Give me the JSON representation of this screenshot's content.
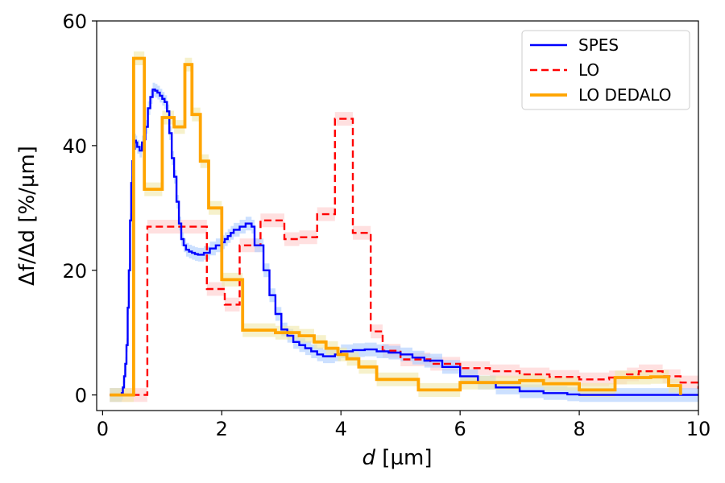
{
  "chart_data": {
    "type": "line",
    "step": true,
    "xlabel_var": "d",
    "xlabel_unit": " [µm]",
    "ylabel": "Δf/Δd [%/µm]",
    "xlim": [
      -0.1,
      10
    ],
    "ylim": [
      -2.5,
      60
    ],
    "xticks": [
      0,
      2,
      4,
      6,
      8,
      10
    ],
    "yticks": [
      0,
      20,
      40,
      60
    ],
    "grid": false,
    "legend_position": "top-right",
    "series": [
      {
        "name": "SPES",
        "color": "#0000ff",
        "dash": "solid",
        "band_color": "#aaccff",
        "x": [
          0.12,
          0.32,
          0.34,
          0.36,
          0.38,
          0.4,
          0.42,
          0.44,
          0.46,
          0.48,
          0.5,
          0.52,
          0.54,
          0.56,
          0.58,
          0.62,
          0.66,
          0.7,
          0.72,
          0.76,
          0.8,
          0.84,
          0.88,
          0.92,
          0.96,
          1.0,
          1.04,
          1.08,
          1.12,
          1.16,
          1.2,
          1.24,
          1.28,
          1.32,
          1.36,
          1.4,
          1.45,
          1.5,
          1.55,
          1.6,
          1.7,
          1.8,
          1.9,
          2.0,
          2.05,
          2.1,
          2.15,
          2.2,
          2.3,
          2.4,
          2.5,
          2.55,
          2.6,
          2.7,
          2.8,
          2.9,
          3.0,
          3.1,
          3.2,
          3.3,
          3.4,
          3.5,
          3.6,
          3.7,
          3.8,
          3.9,
          4.0,
          4.2,
          4.4,
          4.6,
          4.8,
          5.0,
          5.2,
          5.4,
          5.7,
          6.0,
          6.3,
          6.6,
          7.0,
          7.4,
          7.8,
          8.0,
          10.0
        ],
        "values": [
          0,
          0.3,
          1.2,
          3,
          5,
          8,
          14,
          20,
          28,
          34,
          37.5,
          39.5,
          40.8,
          40.5,
          39.8,
          39.2,
          40.5,
          41,
          43,
          46,
          47.8,
          49,
          48.8,
          48.5,
          48,
          47.5,
          47,
          45.5,
          42,
          38,
          35,
          31,
          27.5,
          25,
          24,
          23.3,
          23,
          22.8,
          22.6,
          22.5,
          22.8,
          23.5,
          24,
          24.5,
          25,
          25.5,
          26,
          26.5,
          27,
          27.5,
          27,
          24,
          24,
          20,
          16,
          13,
          10.5,
          9.5,
          8.5,
          8,
          7.5,
          7,
          6.5,
          6.2,
          6.2,
          6.5,
          7,
          7.2,
          7.3,
          7,
          6.8,
          6.5,
          6,
          5.5,
          4.5,
          3,
          2,
          1.2,
          0.6,
          0.3,
          0.1,
          0,
          0
        ]
      },
      {
        "name": "LO",
        "color": "#ff0000",
        "dash": "dashed",
        "band_color": "#ffcccc",
        "x": [
          0.12,
          0.75,
          1.45,
          1.75,
          2.05,
          2.3,
          2.65,
          3.05,
          3.3,
          3.6,
          3.9,
          4.2,
          4.5,
          4.7,
          5.0,
          5.5,
          6.0,
          6.5,
          7.0,
          7.5,
          8.0,
          8.5,
          8.8,
          9.0,
          9.4,
          9.7,
          10.0
        ],
        "values": [
          0,
          27,
          27,
          17,
          14.5,
          24,
          28,
          25,
          25.3,
          29,
          44.3,
          26,
          10.2,
          7.1,
          5.7,
          5,
          4.3,
          3.8,
          3.3,
          2.9,
          2.5,
          2.8,
          3.3,
          3.8,
          3,
          2,
          1
        ]
      },
      {
        "name": "LO DEDALO",
        "color": "#ffa500",
        "dash": "solid",
        "band_color": "#f0e8a8",
        "x": [
          0.12,
          0.52,
          0.7,
          1.0,
          1.2,
          1.38,
          1.5,
          1.64,
          1.78,
          2.0,
          2.35,
          2.9,
          3.3,
          3.55,
          3.75,
          3.95,
          4.1,
          4.3,
          4.6,
          5.3,
          6.0,
          7.0,
          7.4,
          8.0,
          8.6,
          9.2,
          9.5,
          9.7
        ],
        "values": [
          0,
          54,
          33,
          44.5,
          43,
          53,
          45,
          37.5,
          30,
          18.5,
          10.4,
          10,
          9.5,
          8.5,
          7.5,
          6.5,
          5.8,
          4.5,
          2.5,
          0.8,
          2,
          2.3,
          1.8,
          0.8,
          2.8,
          2.9,
          1.5,
          0
        ]
      }
    ]
  }
}
